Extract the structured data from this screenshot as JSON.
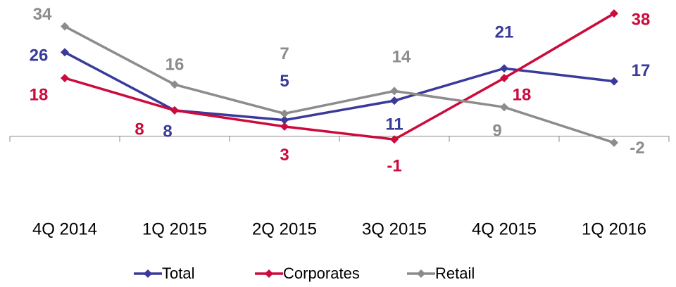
{
  "chart_data": {
    "type": "line",
    "categories": [
      "4Q 2014",
      "1Q 2015",
      "2Q 2015",
      "3Q 2015",
      "4Q 2015",
      "1Q 2016"
    ],
    "series": [
      {
        "name": "Total",
        "color": "#3a3a9a",
        "values": [
          26,
          8,
          5,
          11,
          21,
          17
        ]
      },
      {
        "name": "Corporates",
        "color": "#cc0a3c",
        "values": [
          18,
          8,
          3,
          -1,
          18,
          38
        ]
      },
      {
        "name": "Retail",
        "color": "#8c8c8c",
        "values": [
          34,
          16,
          7,
          14,
          9,
          -2
        ]
      }
    ],
    "ylim": [
      -4,
      40
    ],
    "legend": "bottom"
  }
}
